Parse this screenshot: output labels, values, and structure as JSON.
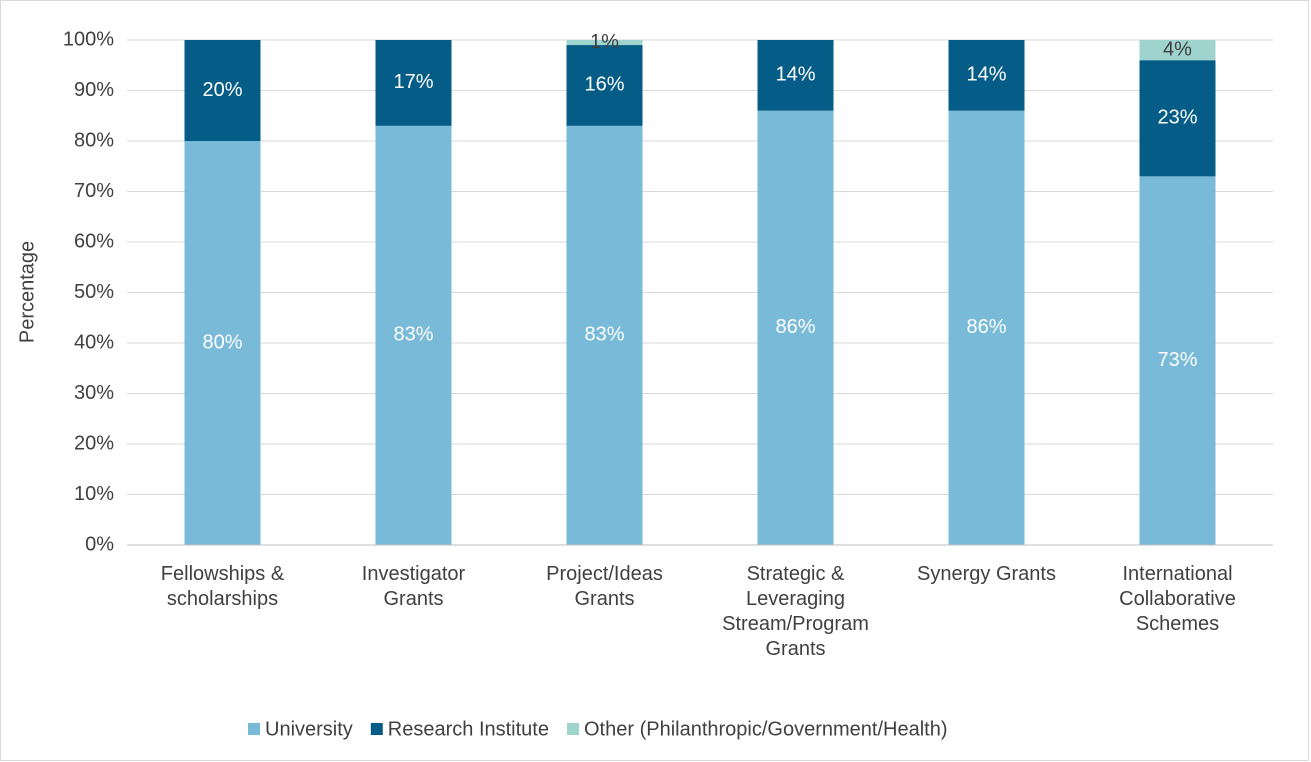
{
  "chart_data": {
    "type": "stacked_bar",
    "categories": [
      "Fellowships &\nscholarships",
      "Investigator\nGrants",
      "Project/Ideas\nGrants",
      "Strategic &\nLeveraging\nStream/Program\nGrants",
      "Synergy Grants",
      "International\nCollaborative\nSchemes"
    ],
    "series": [
      {
        "name": "University",
        "color": "#78bad8",
        "label_color": "#ffffff",
        "values": [
          80,
          83,
          83,
          86,
          86,
          73
        ],
        "value_labels": [
          "80%",
          "83%",
          "83%",
          "86%",
          "86%",
          "73%"
        ]
      },
      {
        "name": "Research Institute",
        "color": "#055d87",
        "label_color": "#ffffff",
        "values": [
          20,
          17,
          16,
          14,
          14,
          23
        ],
        "value_labels": [
          "20%",
          "17%",
          "16%",
          "14%",
          "14%",
          "23%"
        ]
      },
      {
        "name": "Other (Philanthropic/Government/Health)",
        "color": "#9fd3cd",
        "label_color": "#404040",
        "values": [
          null,
          null,
          1,
          null,
          null,
          4
        ],
        "value_labels": [
          null,
          null,
          "1%",
          null,
          null,
          "4%"
        ]
      }
    ],
    "ylabel": "Percentage",
    "ylim": [
      0,
      100
    ],
    "yticks": [
      {
        "value": 0,
        "label": "0%"
      },
      {
        "value": 10,
        "label": "10%"
      },
      {
        "value": 20,
        "label": "20%"
      },
      {
        "value": 30,
        "label": "30%"
      },
      {
        "value": 40,
        "label": "40%"
      },
      {
        "value": 50,
        "label": "50%"
      },
      {
        "value": 60,
        "label": "60%"
      },
      {
        "value": 70,
        "label": "70%"
      },
      {
        "value": 80,
        "label": "80%"
      },
      {
        "value": 90,
        "label": "90%"
      },
      {
        "value": 100,
        "label": "100%"
      }
    ],
    "grid": true,
    "legend": "bottom"
  }
}
